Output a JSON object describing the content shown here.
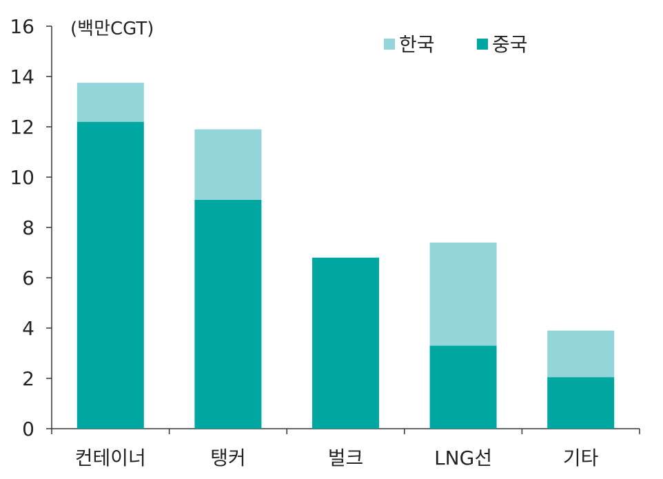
{
  "chart_data": {
    "type": "bar",
    "stacked": true,
    "unit_label": "(백만CGT)",
    "categories": [
      "컨테이너",
      "탱커",
      "벌크",
      "LNG선",
      "기타"
    ],
    "series": [
      {
        "name": "중국",
        "color": "#00A6A0",
        "values": [
          12.2,
          9.1,
          6.8,
          3.3,
          2.05
        ]
      },
      {
        "name": "한국",
        "color": "#93D5D9",
        "values": [
          1.55,
          2.8,
          0.0,
          4.1,
          1.85
        ]
      }
    ],
    "legend_order": [
      "한국",
      "중국"
    ],
    "legend_position": "top-right",
    "ylim": [
      0,
      16
    ],
    "yticks": [
      0,
      2,
      4,
      6,
      8,
      10,
      12,
      14,
      16
    ],
    "grid": false
  }
}
